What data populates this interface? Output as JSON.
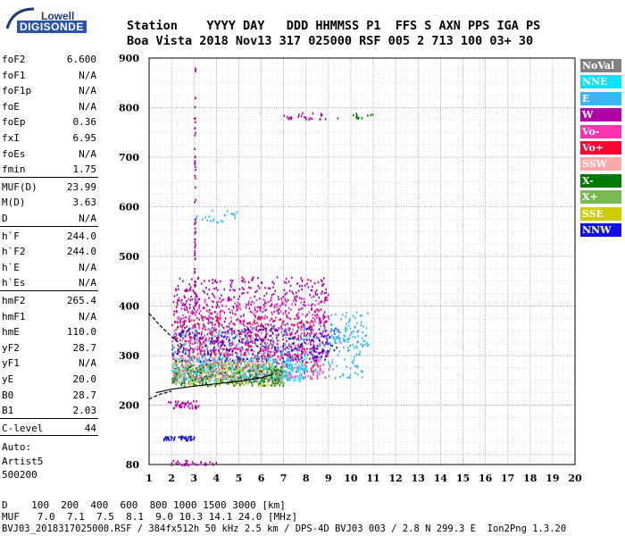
{
  "logo": {
    "brand": "Lowell",
    "product": "DIGISONDE"
  },
  "header": {
    "line1": "Station    YYYY DAY   DDD HHMMSS P1  FFS S AXN PPS IGA PS",
    "line2": "Boa Vista 2018 Nov13 317 025000 RSF 005 2 713 100 03+ 30"
  },
  "params": {
    "group1": [
      {
        "label": "foF2",
        "value": "6.600"
      },
      {
        "label": "foF1",
        "value": "N/A"
      },
      {
        "label": "foF1p",
        "value": "N/A"
      },
      {
        "label": "foE",
        "value": "N/A"
      },
      {
        "label": "foEp",
        "value": "0.36"
      },
      {
        "label": "fxI",
        "value": "6.95"
      },
      {
        "label": "foEs",
        "value": "N/A"
      },
      {
        "label": "fmin",
        "value": "1.75"
      }
    ],
    "group2": [
      {
        "label": "MUF(D)",
        "value": "23.99"
      },
      {
        "label": "M(D)",
        "value": "3.63"
      },
      {
        "label": "D",
        "value": "N/A"
      }
    ],
    "group3": [
      {
        "label": "h`F",
        "value": "244.0"
      },
      {
        "label": "h`F2",
        "value": "244.0"
      },
      {
        "label": "h`E",
        "value": "N/A"
      },
      {
        "label": "h`Es",
        "value": "N/A"
      }
    ],
    "group4": [
      {
        "label": "hmF2",
        "value": "265.4"
      },
      {
        "label": "hmF1",
        "value": "N/A"
      },
      {
        "label": "hmE",
        "value": "110.0"
      },
      {
        "label": "yF2",
        "value": "28.7"
      },
      {
        "label": "yF1",
        "value": "N/A"
      },
      {
        "label": "yE",
        "value": "20.0"
      },
      {
        "label": "B0",
        "value": "28.7"
      },
      {
        "label": "B1",
        "value": "2.03"
      }
    ],
    "clevel": {
      "label": "C-level",
      "value": "44"
    },
    "auto": [
      "Auto:",
      "Artist5",
      "500200"
    ]
  },
  "legend": [
    {
      "label": "NoVal",
      "color": "#808080"
    },
    {
      "label": "NNE",
      "color": "#00e5ff"
    },
    {
      "label": "E",
      "color": "#3db5f5"
    },
    {
      "label": "W",
      "color": "#b000a8"
    },
    {
      "label": "Vo-",
      "color": "#ff33b0"
    },
    {
      "label": "Vo+",
      "color": "#ff0033"
    },
    {
      "label": "SSW",
      "color": "#ffa8a8"
    },
    {
      "label": "X-",
      "color": "#007a00"
    },
    {
      "label": "X+",
      "color": "#77bb55"
    },
    {
      "label": "SSE",
      "color": "#cccc00"
    },
    {
      "label": "NNW",
      "color": "#1010e0"
    }
  ],
  "chart_data": {
    "type": "scatter",
    "xlim": [
      1,
      20
    ],
    "ylim": [
      80,
      900
    ],
    "x_ticks": [
      "1",
      "2",
      "3",
      "4",
      "5",
      "6",
      "7",
      "8",
      "9",
      "10",
      "11",
      "12",
      "13",
      "14",
      "15",
      "16",
      "17",
      "18",
      "19",
      "20"
    ],
    "y_ticks": [
      "80",
      "200",
      "300",
      "400",
      "500",
      "600",
      "700",
      "800",
      "900"
    ],
    "y_tick_values": [
      80,
      200,
      300,
      400,
      500,
      600,
      700,
      800,
      900
    ],
    "grid": true,
    "trace": {
      "lower_curve": [
        [
          1.3,
          225
        ],
        [
          2.0,
          232
        ],
        [
          3.0,
          238
        ],
        [
          4.0,
          243
        ],
        [
          5.0,
          248
        ],
        [
          6.0,
          255
        ],
        [
          6.5,
          262
        ]
      ],
      "upper_curve": [
        [
          1.0,
          385
        ],
        [
          1.5,
          360
        ],
        [
          2.0,
          338
        ],
        [
          2.5,
          320
        ]
      ],
      "left_curve": [
        [
          1.0,
          212
        ],
        [
          1.5,
          222
        ],
        [
          2.0,
          228
        ]
      ]
    },
    "clusters": [
      {
        "color": "#ff33b0",
        "x": [
          2.0,
          9.0
        ],
        "y": [
          255,
          420
        ],
        "n": 700
      },
      {
        "color": "#b000a8",
        "x": [
          2.0,
          9.0
        ],
        "y": [
          300,
          460
        ],
        "n": 650
      },
      {
        "color": "#ff0033",
        "x": [
          2.2,
          8.5
        ],
        "y": [
          270,
          380
        ],
        "n": 250
      },
      {
        "color": "#3db5f5",
        "x": [
          2.0,
          10.5
        ],
        "y": [
          255,
          360
        ],
        "n": 420
      },
      {
        "color": "#00e5ff",
        "x": [
          2.0,
          8.0
        ],
        "y": [
          250,
          300
        ],
        "n": 280
      },
      {
        "color": "#1010e0",
        "x": [
          2.0,
          9.5
        ],
        "y": [
          290,
          360
        ],
        "n": 180
      },
      {
        "color": "#cccc00",
        "x": [
          2.0,
          7.0
        ],
        "y": [
          240,
          290
        ],
        "n": 150
      },
      {
        "color": "#77bb55",
        "x": [
          2.0,
          7.0
        ],
        "y": [
          245,
          285
        ],
        "n": 180
      },
      {
        "color": "#007a00",
        "x": [
          2.0,
          7.0
        ],
        "y": [
          240,
          280
        ],
        "n": 150
      },
      {
        "color": "#808080",
        "x": [
          2.0,
          7.0
        ],
        "y": [
          245,
          300
        ],
        "n": 120
      },
      {
        "color": "#ffa8a8",
        "x": [
          2.0,
          5.0
        ],
        "y": [
          255,
          300
        ],
        "n": 80
      },
      {
        "color": "#b000a8",
        "x": [
          1.8,
          3.2
        ],
        "y": [
          195,
          210
        ],
        "n": 40
      },
      {
        "color": "#1010e0",
        "x": [
          1.6,
          3.0
        ],
        "y": [
          130,
          140
        ],
        "n": 40
      },
      {
        "color": "#b000a8",
        "x": [
          1.9,
          4.0
        ],
        "y": [
          80,
          90
        ],
        "n": 30
      },
      {
        "color": "#b000a8",
        "x": [
          7.0,
          9.6
        ],
        "y": [
          778,
          792
        ],
        "n": 25
      },
      {
        "color": "#007a00",
        "x": [
          10.0,
          11.0
        ],
        "y": [
          780,
          790
        ],
        "n": 12
      },
      {
        "color": "#3db5f5",
        "x": [
          3.0,
          5.0
        ],
        "y": [
          570,
          600
        ],
        "n": 25
      },
      {
        "color": "#3db5f5",
        "x": [
          9.0,
          10.8
        ],
        "y": [
          320,
          390
        ],
        "n": 80
      },
      {
        "color": "#b000a8",
        "x": [
          3.0,
          3.05
        ],
        "y": [
          400,
          900
        ],
        "n": 60
      }
    ]
  },
  "footer": {
    "line1": "D    100  200  400  600  800 1000 1500 3000 [km]",
    "line2": "MUF   7.0  7.1  7.5  8.1  9.0 10.3 14.1 24.0 [MHz]",
    "line3": "BVJ03_2018317025000.RSF / 384fx512h 50 kHz 2.5 km / DPS-4D BVJ03 003 / 2.8 N 299.3 E  Ion2Png 1.3.20"
  }
}
